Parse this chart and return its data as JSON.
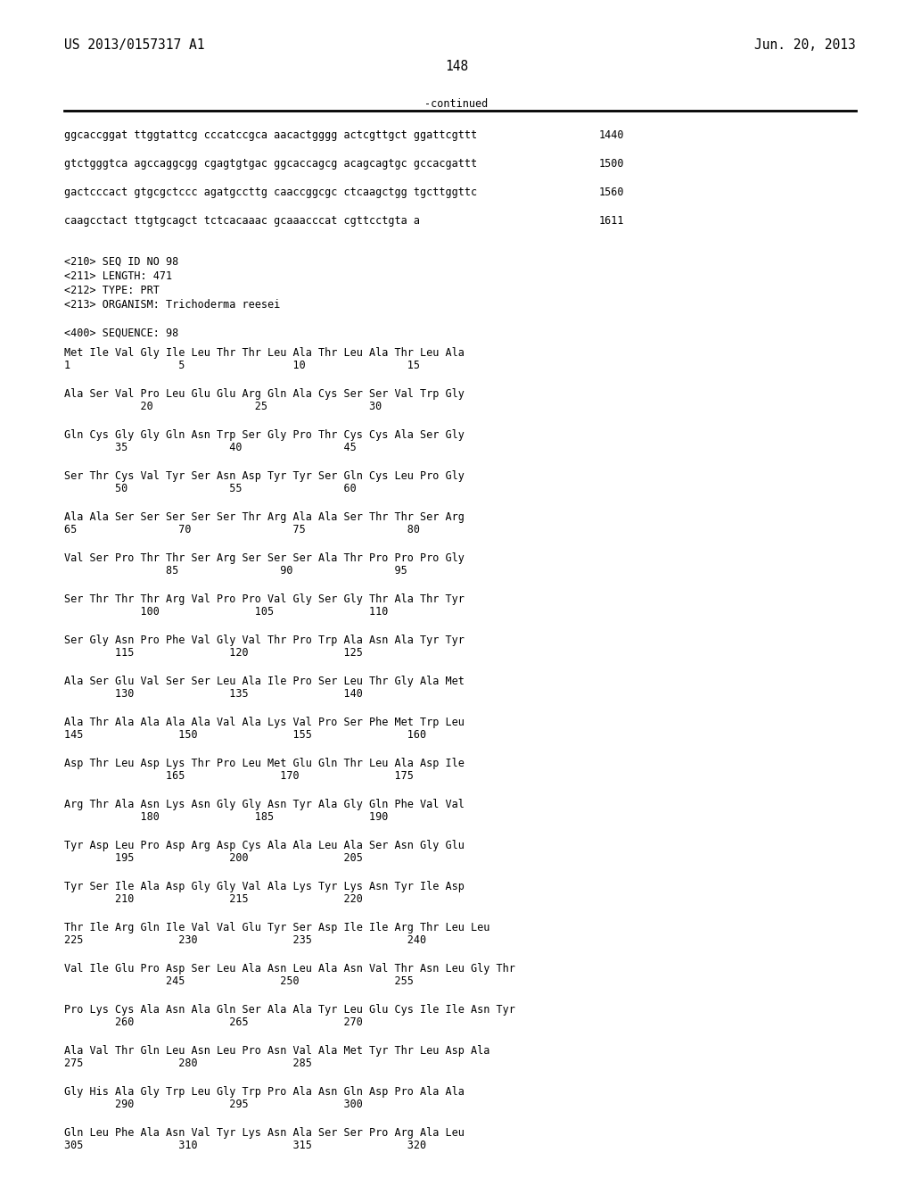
{
  "header_left": "US 2013/0157317 A1",
  "header_right": "Jun. 20, 2013",
  "page_number": "148",
  "continued_label": "-continued",
  "background_color": "#ffffff",
  "text_color": "#000000",
  "font_size_header": 10.5,
  "font_size_body": 8.5,
  "sequence_lines": [
    {
      "text": "ggcaccggat ttggtattcg cccatccgca aacactgggg actcgttgct ggattcgttt",
      "num": "1440"
    },
    {
      "text": "gtctgggtca agccaggcgg cgagtgtgac ggcaccagcg acagcagtgc gccacgattt",
      "num": "1500"
    },
    {
      "text": "gactcccact gtgcgctccc agatgccttg caaccggcgc ctcaagctgg tgcttggttc",
      "num": "1560"
    },
    {
      "text": "caagcctact ttgtgcagct tctcacaaac gcaaacccat cgttcctgta a",
      "num": "1611"
    }
  ],
  "metadata_lines": [
    "<210> SEQ ID NO 98",
    "<211> LENGTH: 471",
    "<212> TYPE: PRT",
    "<213> ORGANISM: Trichoderma reesei",
    "",
    "<400> SEQUENCE: 98"
  ],
  "amino_acid_blocks": [
    {
      "seq": "Met Ile Val Gly Ile Leu Thr Thr Leu Ala Thr Leu Ala Thr Leu Ala",
      "nums": "1                 5                 10                15"
    },
    {
      "seq": "Ala Ser Val Pro Leu Glu Glu Arg Gln Ala Cys Ser Ser Val Trp Gly",
      "nums": "            20                25                30"
    },
    {
      "seq": "Gln Cys Gly Gly Gln Asn Trp Ser Gly Pro Thr Cys Cys Ala Ser Gly",
      "nums": "        35                40                45"
    },
    {
      "seq": "Ser Thr Cys Val Tyr Ser Asn Asp Tyr Tyr Ser Gln Cys Leu Pro Gly",
      "nums": "        50                55                60"
    },
    {
      "seq": "Ala Ala Ser Ser Ser Ser Ser Thr Arg Ala Ala Ser Thr Thr Ser Arg",
      "nums": "65                70                75                80"
    },
    {
      "seq": "Val Ser Pro Thr Thr Ser Arg Ser Ser Ser Ala Thr Pro Pro Pro Gly",
      "nums": "                85                90                95"
    },
    {
      "seq": "Ser Thr Thr Thr Arg Val Pro Pro Val Gly Ser Gly Thr Ala Thr Tyr",
      "nums": "            100               105               110"
    },
    {
      "seq": "Ser Gly Asn Pro Phe Val Gly Val Thr Pro Trp Ala Asn Ala Tyr Tyr",
      "nums": "        115               120               125"
    },
    {
      "seq": "Ala Ser Glu Val Ser Ser Leu Ala Ile Pro Ser Leu Thr Gly Ala Met",
      "nums": "        130               135               140"
    },
    {
      "seq": "Ala Thr Ala Ala Ala Ala Val Ala Lys Val Pro Ser Phe Met Trp Leu",
      "nums": "145               150               155               160"
    },
    {
      "seq": "Asp Thr Leu Asp Lys Thr Pro Leu Met Glu Gln Thr Leu Ala Asp Ile",
      "nums": "                165               170               175"
    },
    {
      "seq": "Arg Thr Ala Asn Lys Asn Gly Gly Asn Tyr Ala Gly Gln Phe Val Val",
      "nums": "            180               185               190"
    },
    {
      "seq": "Tyr Asp Leu Pro Asp Arg Asp Cys Ala Ala Leu Ala Ser Asn Gly Glu",
      "nums": "        195               200               205"
    },
    {
      "seq": "Tyr Ser Ile Ala Asp Gly Gly Val Ala Lys Tyr Lys Asn Tyr Ile Asp",
      "nums": "        210               215               220"
    },
    {
      "seq": "Thr Ile Arg Gln Ile Val Val Glu Tyr Ser Asp Ile Ile Arg Thr Leu Leu",
      "nums": "225               230               235               240"
    },
    {
      "seq": "Val Ile Glu Pro Asp Ser Leu Ala Asn Leu Ala Asn Val Thr Asn Leu Gly Thr",
      "nums": "                245               250               255"
    },
    {
      "seq": "Pro Lys Cys Ala Asn Ala Gln Ser Ala Ala Tyr Leu Glu Cys Ile Ile Asn Tyr",
      "nums": "        260               265               270"
    },
    {
      "seq": "Ala Val Thr Gln Leu Asn Leu Pro Asn Val Ala Met Tyr Thr Leu Asp Ala",
      "nums": "275               280               285"
    },
    {
      "seq": "Gly His Ala Gly Trp Leu Gly Trp Pro Ala Asn Gln Asp Pro Ala Ala",
      "nums": "        290               295               300"
    },
    {
      "seq": "Gln Leu Phe Ala Asn Val Tyr Lys Asn Ala Ser Ser Pro Arg Ala Leu",
      "nums": "305               310               315               320"
    }
  ]
}
